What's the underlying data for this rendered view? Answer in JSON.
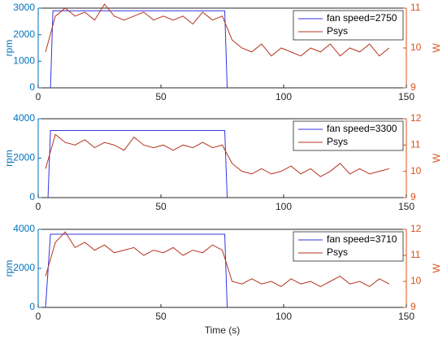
{
  "chart_data": [
    {
      "type": "line",
      "ylabel": "rpm",
      "y2label": "W",
      "xlim": [
        0,
        150
      ],
      "xticks": [
        0,
        50,
        100,
        150
      ],
      "ylim": [
        0,
        3000
      ],
      "yticks": [
        0,
        1000,
        2000,
        3000
      ],
      "y2lim": [
        9,
        11
      ],
      "y2ticks": [
        9,
        10,
        11
      ],
      "legend": "upper right",
      "series": [
        {
          "name": "fan speed=2750",
          "color": "#3434e0",
          "x": [
            5,
            6,
            76,
            77
          ],
          "values": [
            0,
            2900,
            2900,
            0
          ]
        },
        {
          "name": "Psys",
          "color": "#b5341f",
          "axis": "y2",
          "x": [
            3,
            7,
            11,
            15,
            19,
            23,
            27,
            31,
            35,
            39,
            43,
            47,
            51,
            55,
            59,
            63,
            67,
            71,
            75,
            79,
            83,
            87,
            91,
            95,
            99,
            103,
            107,
            111,
            115,
            119,
            123,
            127,
            131,
            135,
            139,
            143
          ],
          "values": [
            9.9,
            10.8,
            11.0,
            10.8,
            10.9,
            10.7,
            11.1,
            10.8,
            10.7,
            10.8,
            10.9,
            10.7,
            10.8,
            10.7,
            10.8,
            10.6,
            10.9,
            10.7,
            10.8,
            10.2,
            10.0,
            9.9,
            10.1,
            9.8,
            10.0,
            9.9,
            9.8,
            10.0,
            9.9,
            10.1,
            9.8,
            10.0,
            9.9,
            10.1,
            9.8,
            10.0
          ]
        }
      ]
    },
    {
      "type": "line",
      "ylabel": "rpm",
      "y2label": "W",
      "xlim": [
        0,
        150
      ],
      "xticks": [
        0,
        50,
        100,
        150
      ],
      "ylim": [
        0,
        4000
      ],
      "yticks": [
        0,
        2000,
        4000
      ],
      "y2lim": [
        9,
        12
      ],
      "y2ticks": [
        9,
        10,
        11,
        12
      ],
      "legend": "upper right",
      "series": [
        {
          "name": "fan speed=3300",
          "color": "#3434e0",
          "x": [
            4,
            5,
            76,
            77
          ],
          "values": [
            0,
            3400,
            3400,
            0
          ]
        },
        {
          "name": "Psys",
          "color": "#b5341f",
          "axis": "y2",
          "x": [
            3,
            7,
            11,
            15,
            19,
            23,
            27,
            31,
            35,
            39,
            43,
            47,
            51,
            55,
            59,
            63,
            67,
            71,
            75,
            79,
            83,
            87,
            91,
            95,
            99,
            103,
            107,
            111,
            115,
            119,
            123,
            127,
            131,
            135,
            139,
            143
          ],
          "values": [
            10.1,
            11.4,
            11.1,
            11.0,
            11.2,
            10.9,
            11.1,
            11.0,
            10.8,
            11.3,
            11.0,
            10.9,
            11.0,
            10.8,
            11.0,
            10.9,
            11.1,
            10.9,
            11.0,
            10.3,
            10.0,
            9.9,
            10.1,
            9.9,
            10.0,
            10.2,
            9.9,
            10.1,
            9.8,
            10.0,
            10.3,
            9.9,
            10.1,
            9.9,
            10.0,
            10.1
          ]
        }
      ]
    },
    {
      "type": "line",
      "ylabel": "rpm",
      "y2label": "W",
      "xlabel": "Time (s)",
      "xlim": [
        0,
        150
      ],
      "xticks": [
        0,
        50,
        100,
        150
      ],
      "ylim": [
        0,
        4000
      ],
      "yticks": [
        0,
        2000,
        4000
      ],
      "y2lim": [
        9,
        12
      ],
      "y2ticks": [
        9,
        10,
        11,
        12
      ],
      "legend": "upper right",
      "series": [
        {
          "name": "fan speed=3710",
          "color": "#3434e0",
          "x": [
            3,
            5,
            76,
            77
          ],
          "values": [
            0,
            3750,
            3750,
            0
          ]
        },
        {
          "name": "Psys",
          "color": "#b5341f",
          "axis": "y2",
          "x": [
            3,
            7,
            11,
            15,
            19,
            23,
            27,
            31,
            35,
            39,
            43,
            47,
            51,
            55,
            59,
            63,
            67,
            71,
            75,
            79,
            83,
            87,
            91,
            95,
            99,
            103,
            107,
            111,
            115,
            119,
            123,
            127,
            131,
            135,
            139,
            143
          ],
          "values": [
            10.2,
            11.5,
            11.9,
            11.3,
            11.5,
            11.2,
            11.4,
            11.1,
            11.2,
            11.3,
            11.0,
            11.2,
            11.1,
            11.3,
            11.0,
            11.2,
            11.1,
            11.4,
            11.2,
            10.0,
            9.9,
            10.1,
            9.9,
            10.0,
            9.8,
            10.1,
            9.9,
            10.0,
            9.8,
            10.0,
            10.2,
            9.9,
            10.0,
            9.8,
            10.1,
            9.9
          ]
        }
      ]
    }
  ]
}
